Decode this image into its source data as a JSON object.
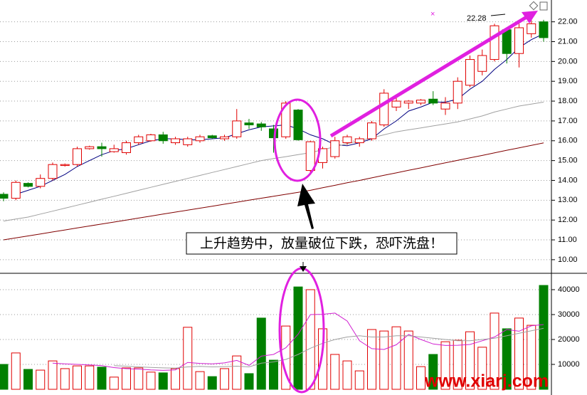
{
  "chart_data": [
    {
      "type": "candlestick",
      "open": [
        13.3,
        13.1,
        13.85,
        13.7,
        14.1,
        14.75,
        14.8,
        15.6,
        15.7,
        15.45,
        15.4,
        15.9,
        16.0,
        16.3,
        15.9,
        15.8,
        16.0,
        16.25,
        16.1,
        16.2,
        16.9,
        16.85,
        16.6,
        16.2,
        17.55,
        14.5,
        14.9,
        15.2,
        15.9,
        15.9,
        16.1,
        16.8,
        17.7,
        17.9,
        17.9,
        18.1,
        17.6,
        17.9,
        18.8,
        19.5,
        20.1,
        21.6,
        20.4,
        21.4,
        22.0
      ],
      "high": [
        13.4,
        14.0,
        13.9,
        14.3,
        14.9,
        14.85,
        15.7,
        15.75,
        15.9,
        15.8,
        16.0,
        16.3,
        16.35,
        16.45,
        16.2,
        16.2,
        16.3,
        16.3,
        16.3,
        17.6,
        17.1,
        16.95,
        16.8,
        18.0,
        17.6,
        16.0,
        15.7,
        16.2,
        16.3,
        16.2,
        17.0,
        18.6,
        18.3,
        18.05,
        18.1,
        18.5,
        18.2,
        19.2,
        20.3,
        20.6,
        21.9,
        21.7,
        21.9,
        22.28,
        22.1
      ],
      "low": [
        12.95,
        13.0,
        13.65,
        13.6,
        14.0,
        14.7,
        14.7,
        15.55,
        15.2,
        15.4,
        15.3,
        15.8,
        15.95,
        15.85,
        15.8,
        15.7,
        15.9,
        16.1,
        16.0,
        16.1,
        16.6,
        16.5,
        15.4,
        16.1,
        16.0,
        14.4,
        14.6,
        15.1,
        15.8,
        15.7,
        16.0,
        16.7,
        17.5,
        17.6,
        17.8,
        17.8,
        17.3,
        17.6,
        18.7,
        19.3,
        20.0,
        19.9,
        19.7,
        21.2,
        21.0
      ],
      "close": [
        13.1,
        13.9,
        13.7,
        14.1,
        14.8,
        14.8,
        15.6,
        15.7,
        15.6,
        15.6,
        15.9,
        16.2,
        16.3,
        16.0,
        16.1,
        16.1,
        16.2,
        16.15,
        16.2,
        17.0,
        16.8,
        16.7,
        16.15,
        17.9,
        16.05,
        15.95,
        15.6,
        16.0,
        16.2,
        16.1,
        16.9,
        18.4,
        18.0,
        18.0,
        18.05,
        17.9,
        17.9,
        19.0,
        20.1,
        20.3,
        21.8,
        20.4,
        21.7,
        21.9,
        21.2
      ],
      "up_color": "#e00000",
      "down_color": "#008000",
      "lines": [
        {
          "color": "#000080",
          "values": [
            null,
            13.3,
            13.5,
            13.7,
            14.0,
            14.3,
            14.7,
            15.0,
            15.3,
            15.5,
            15.6,
            15.8,
            16.0,
            16.1,
            16.1,
            16.05,
            16.05,
            16.1,
            16.15,
            16.35,
            16.55,
            16.7,
            16.75,
            16.8,
            16.6,
            16.3,
            16.1,
            15.8,
            15.75,
            15.9,
            16.1,
            16.6,
            17.0,
            17.5,
            17.7,
            17.95,
            17.95,
            18.1,
            18.6,
            19.0,
            19.6,
            20.1,
            20.7,
            21.1,
            21.4
          ]
        },
        {
          "color": "#a0a0a0",
          "values": [
            11.95,
            12.05,
            12.15,
            12.3,
            12.45,
            12.6,
            12.75,
            12.9,
            13.05,
            13.2,
            13.35,
            13.5,
            13.65,
            13.8,
            13.95,
            14.1,
            14.25,
            14.4,
            14.55,
            14.7,
            14.85,
            15.0,
            15.1,
            15.2,
            15.3,
            15.4,
            15.55,
            15.7,
            15.85,
            16.0,
            16.15,
            16.3,
            16.45,
            16.55,
            16.65,
            16.75,
            16.85,
            16.95,
            17.1,
            17.25,
            17.45,
            17.6,
            17.75,
            17.85,
            17.95
          ]
        },
        {
          "color": "#800000",
          "values": [
            11.0,
            11.1,
            11.2,
            11.3,
            11.4,
            11.5,
            11.6,
            11.7,
            11.8,
            11.9,
            12.0,
            12.1,
            12.2,
            12.3,
            12.4,
            12.5,
            12.6,
            12.7,
            12.8,
            12.9,
            13.0,
            13.1,
            13.2,
            13.3,
            13.4,
            13.5,
            13.63,
            13.75,
            13.88,
            14.0,
            14.13,
            14.26,
            14.38,
            14.51,
            14.63,
            14.76,
            14.89,
            15.01,
            15.14,
            15.26,
            15.39,
            15.52,
            15.64,
            15.77,
            15.89
          ]
        }
      ],
      "ylim": [
        9.35,
        23.1
      ],
      "yticks": [
        {
          "value": 10,
          "label": "10.00"
        },
        {
          "value": 11,
          "label": "11.00"
        },
        {
          "value": 12,
          "label": "12.00"
        },
        {
          "value": 13,
          "label": "13.00"
        },
        {
          "value": 14,
          "label": "14.00"
        },
        {
          "value": 15,
          "label": "15.00"
        },
        {
          "value": 16,
          "label": "16.00"
        },
        {
          "value": 17,
          "label": "17.00"
        },
        {
          "value": 18,
          "label": "18.00"
        },
        {
          "value": 19,
          "label": "19.00"
        },
        {
          "value": 20,
          "label": "20.00"
        },
        {
          "value": 21,
          "label": "21.00"
        },
        {
          "value": 22,
          "label": "22.00"
        }
      ],
      "grid": true,
      "high_label": 22.28,
      "annotation": "上升趋势中，放量破位下跌，恐吓洗盘！",
      "watermark": "www.xiarj.com"
    },
    {
      "type": "bar",
      "values": [
        10000,
        14600,
        8000,
        7700,
        11400,
        8300,
        9400,
        9400,
        8900,
        4900,
        8600,
        8600,
        6900,
        6600,
        8300,
        24900,
        7100,
        5100,
        8300,
        13400,
        6300,
        28600,
        11700,
        25400,
        41100,
        40000,
        24300,
        14000,
        11400,
        7400,
        24000,
        23400,
        25100,
        23400,
        9100,
        14000,
        19100,
        19700,
        23100,
        16900,
        30600,
        24300,
        28600,
        25700,
        41700
      ],
      "up_color": "#e00000",
      "down_color": "#008000",
      "lines": [
        {
          "color": "#d020d0",
          "values": [
            null,
            null,
            null,
            null,
            10500,
            10200,
            10000,
            9800,
            9500,
            8700,
            8300,
            8100,
            7800,
            7600,
            7800,
            10800,
            10400,
            10200,
            10600,
            11600,
            9600,
            13300,
            14000,
            16700,
            22100,
            30000,
            30100,
            30600,
            27400,
            19500,
            16300,
            16000,
            17900,
            22000,
            20000,
            18200,
            17600,
            17700,
            18000,
            19500,
            21000,
            24000,
            23300,
            25500,
            26000
          ]
        },
        {
          "color": "#a0a0a0",
          "values": [
            null,
            null,
            null,
            null,
            null,
            null,
            null,
            null,
            null,
            9500,
            9300,
            9000,
            8800,
            8600,
            8500,
            9000,
            9200,
            9000,
            9100,
            9300,
            9000,
            10500,
            11000,
            12000,
            14000,
            16500,
            18500,
            20000,
            21000,
            21500,
            21000,
            21000,
            21500,
            21500,
            21000,
            20500,
            20000,
            19500,
            19500,
            20000,
            20500,
            21500,
            22500,
            23500,
            24500
          ]
        }
      ],
      "ylim": [
        0,
        46000
      ],
      "yticks": [
        10000,
        20000,
        30000,
        40000
      ],
      "grid": true
    }
  ]
}
